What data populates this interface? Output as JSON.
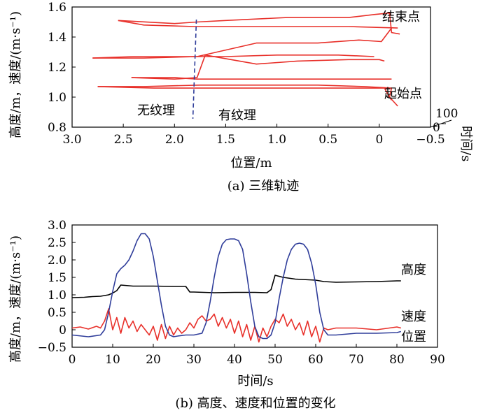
{
  "chart_data": [
    {
      "type": "line",
      "caption": "(a) 三维轨迹",
      "xlabel": "位置/m",
      "ylabel": "高度/m，速度/(m·s⁻¹)",
      "zlabel": "时间/s",
      "xlim": [
        3.0,
        -0.5
      ],
      "ylim": [
        0.8,
        1.6
      ],
      "xticks": [
        "3.0",
        "2.5",
        "2.0",
        "1.5",
        "1.0",
        "0.5",
        "0",
        "−0.5"
      ],
      "yticks": [
        "0.8",
        "1.0",
        "1.2",
        "1.4",
        "1.6"
      ],
      "zticks": [
        "0",
        "100"
      ],
      "annotations": {
        "start": "起始点",
        "end": "结束点",
        "no_texture": "无纹理",
        "texture": "有纹理"
      },
      "boundary_x": 1.8,
      "colors": {
        "trajectory": "#e8302a",
        "boundary": "#2f3d9a"
      },
      "series": [
        {
          "points": [
            [
              -0.18,
              0.94
            ],
            [
              -0.1,
              1.0
            ],
            [
              -0.12,
              1.06
            ],
            [
              0.15,
              1.07
            ],
            [
              0.6,
              1.08
            ],
            [
              1.2,
              1.08
            ],
            [
              1.75,
              1.08
            ],
            [
              2.3,
              1.07
            ],
            [
              2.75,
              1.07
            ]
          ]
        },
        {
          "points": [
            [
              2.75,
              1.07
            ],
            [
              2.2,
              1.06
            ],
            [
              1.7,
              1.06
            ],
            [
              1.2,
              1.06
            ],
            [
              0.7,
              1.06
            ],
            [
              0.3,
              1.06
            ],
            [
              -0.05,
              1.06
            ],
            [
              -0.1,
              1.0
            ],
            [
              -0.12,
              0.98
            ]
          ]
        },
        {
          "points": [
            [
              -0.12,
              1.12
            ],
            [
              0.1,
              1.12
            ],
            [
              0.6,
              1.12
            ],
            [
              1.2,
              1.12
            ],
            [
              1.78,
              1.12
            ],
            [
              2.0,
              1.13
            ],
            [
              2.42,
              1.13
            ]
          ]
        },
        {
          "points": [
            [
              2.42,
              1.13
            ],
            [
              2.0,
              1.12
            ],
            [
              1.78,
              1.13
            ],
            [
              1.7,
              1.28
            ],
            [
              1.2,
              1.22
            ],
            [
              0.8,
              1.24
            ],
            [
              0.3,
              1.25
            ],
            [
              0.0,
              1.25
            ],
            [
              -0.05,
              1.24
            ]
          ]
        },
        {
          "points": [
            [
              0.05,
              1.27
            ],
            [
              0.4,
              1.28
            ],
            [
              1.0,
              1.28
            ],
            [
              1.5,
              1.27
            ],
            [
              1.8,
              1.27
            ],
            [
              2.4,
              1.27
            ],
            [
              2.8,
              1.26
            ]
          ]
        },
        {
          "points": [
            [
              2.8,
              1.26
            ],
            [
              2.3,
              1.26
            ],
            [
              1.78,
              1.27
            ],
            [
              1.2,
              1.36
            ],
            [
              0.6,
              1.36
            ],
            [
              0.2,
              1.38
            ],
            [
              -0.02,
              1.37
            ],
            [
              -0.12,
              1.46
            ]
          ]
        },
        {
          "points": [
            [
              -0.18,
              1.46
            ],
            [
              0.3,
              1.47
            ],
            [
              0.9,
              1.47
            ],
            [
              1.5,
              1.47
            ],
            [
              1.8,
              1.47
            ],
            [
              2.3,
              1.48
            ],
            [
              2.55,
              1.51
            ]
          ]
        },
        {
          "points": [
            [
              2.55,
              1.51
            ],
            [
              2.0,
              1.49
            ],
            [
              1.78,
              1.5
            ],
            [
              1.5,
              1.51
            ],
            [
              0.9,
              1.53
            ],
            [
              0.3,
              1.53
            ],
            [
              0.05,
              1.55
            ],
            [
              -0.1,
              1.56
            ],
            [
              -0.12,
              1.43
            ],
            [
              -0.2,
              1.42
            ]
          ]
        }
      ]
    },
    {
      "type": "line",
      "caption": "(b) 高度、速度和位置的变化",
      "xlabel": "时间/s",
      "ylabel": "高度/m，速度/(m·s⁻¹)",
      "xlim": [
        0,
        90
      ],
      "ylim": [
        -0.5,
        3.0
      ],
      "xticks": [
        "0",
        "10",
        "20",
        "30",
        "40",
        "50",
        "60",
        "70",
        "80",
        "90"
      ],
      "yticks": [
        "−0.5",
        "0",
        "0.5",
        "1.0",
        "1.5",
        "2.0",
        "2.5",
        "3.0"
      ],
      "colors": {
        "height": "#000000",
        "velocity": "#e8302a",
        "position": "#2f3d9a"
      },
      "series": [
        {
          "name": "高度",
          "color": "#000000",
          "x": [
            0,
            3,
            5,
            7,
            8,
            9,
            10,
            11,
            12,
            15,
            20,
            25,
            28,
            29,
            30,
            35,
            40,
            45,
            48,
            49,
            50,
            52,
            55,
            60,
            62,
            65,
            70,
            75,
            80,
            81
          ],
          "y": [
            0.92,
            0.93,
            0.95,
            0.96,
            0.98,
            1.0,
            1.05,
            1.12,
            1.28,
            1.25,
            1.25,
            1.24,
            1.24,
            1.08,
            1.08,
            1.06,
            1.07,
            1.07,
            1.06,
            1.15,
            1.56,
            1.5,
            1.45,
            1.42,
            1.38,
            1.36,
            1.37,
            1.38,
            1.4,
            1.4
          ]
        },
        {
          "name": "速度",
          "color": "#e8302a",
          "x": [
            0,
            2,
            4,
            6,
            7,
            8,
            9,
            10,
            11,
            12,
            13,
            14,
            15,
            16,
            17,
            18,
            19,
            20,
            21,
            22,
            23,
            24,
            25,
            26,
            27,
            28,
            29,
            30,
            31,
            32,
            33,
            34,
            35,
            36,
            37,
            38,
            39,
            40,
            41,
            42,
            43,
            44,
            45,
            46,
            47,
            48,
            49,
            50,
            51,
            52,
            53,
            54,
            55,
            56,
            57,
            58,
            59,
            60,
            61,
            62,
            63,
            65,
            70,
            75,
            80,
            81
          ],
          "y": [
            0.05,
            0.08,
            0.02,
            0.1,
            0.05,
            0.25,
            0.6,
            0.0,
            0.35,
            -0.1,
            0.35,
            0.05,
            0.25,
            -0.05,
            0.15,
            0.0,
            -0.15,
            0.1,
            -0.3,
            0.15,
            -0.25,
            0.1,
            -0.15,
            0.05,
            -0.1,
            0.0,
            0.2,
            0.05,
            0.3,
            0.4,
            0.25,
            0.3,
            0.45,
            0.1,
            0.35,
            0.05,
            0.3,
            -0.1,
            0.25,
            -0.2,
            0.15,
            -0.3,
            0.1,
            -0.35,
            0.05,
            -0.2,
            0.1,
            0.3,
            0.2,
            0.45,
            0.1,
            0.3,
            0.0,
            0.2,
            -0.15,
            0.25,
            -0.2,
            0.1,
            -0.35,
            0.05,
            0.0,
            0.05,
            0.05,
            0.0,
            0.08,
            0.05
          ]
        },
        {
          "name": "位置",
          "color": "#2f3d9a",
          "x": [
            0,
            4,
            7,
            8,
            9,
            10,
            11,
            12,
            13,
            14,
            15,
            16,
            17,
            18,
            19,
            20,
            21,
            22,
            23,
            24,
            25,
            26,
            28,
            30,
            32,
            33,
            34,
            35,
            36,
            37,
            38,
            39,
            40,
            41,
            42,
            43,
            44,
            45,
            46,
            47,
            48,
            49,
            50,
            51,
            52,
            53,
            54,
            55,
            56,
            57,
            58,
            59,
            60,
            61,
            62,
            63,
            65,
            70,
            75,
            80,
            81
          ],
          "y": [
            -0.15,
            -0.2,
            -0.15,
            0.0,
            0.5,
            1.1,
            1.6,
            1.75,
            1.85,
            2.0,
            2.25,
            2.55,
            2.75,
            2.75,
            2.6,
            2.1,
            1.4,
            0.7,
            0.1,
            -0.15,
            -0.2,
            -0.18,
            -0.15,
            -0.15,
            -0.1,
            0.2,
            0.8,
            1.5,
            2.1,
            2.45,
            2.58,
            2.6,
            2.6,
            2.55,
            2.3,
            1.6,
            0.8,
            0.1,
            -0.2,
            -0.25,
            -0.25,
            -0.15,
            0.2,
            0.9,
            1.5,
            2.0,
            2.3,
            2.45,
            2.48,
            2.45,
            2.3,
            1.9,
            1.3,
            0.5,
            0.0,
            -0.15,
            -0.15,
            -0.1,
            -0.1,
            -0.08,
            -0.05
          ]
        }
      ]
    }
  ]
}
